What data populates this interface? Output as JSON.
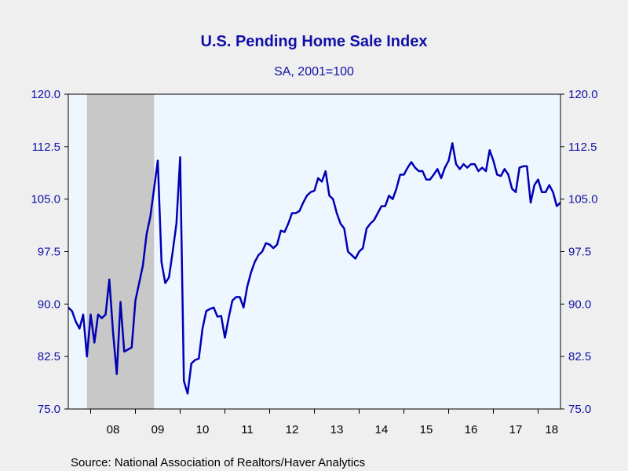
{
  "chart_data": {
    "type": "line",
    "title": "U.S. Pending Home Sale Index",
    "subtitle": "SA, 2001=100",
    "source": "Source:  National Association of Realtors/Haver Analytics",
    "ylim": [
      75.0,
      120.0
    ],
    "y_ticks": [
      "75.0",
      "82.5",
      "90.0",
      "97.5",
      "105.0",
      "112.5",
      "120.0"
    ],
    "x_ticks": [
      "08",
      "09",
      "10",
      "11",
      "12",
      "13",
      "14",
      "15",
      "16",
      "17",
      "18"
    ],
    "x_range": [
      "2007-07",
      "2018-07"
    ],
    "recession_shading": {
      "start": "2007-12",
      "end": "2009-06"
    },
    "grid": false,
    "series": [
      {
        "start": "2007-07",
        "frequency": "monthly",
        "values": [
          89.5,
          89.0,
          87.5,
          86.5,
          88.5,
          82.5,
          88.5,
          84.5,
          88.5,
          88.0,
          88.5,
          93.5,
          86.0,
          80.0,
          90.3,
          83.2,
          83.5,
          83.8,
          90.5,
          93.0,
          95.5,
          100.0,
          102.5,
          106.5,
          110.5,
          96.0,
          93.0,
          93.8,
          97.5,
          101.5,
          111.0,
          79.0,
          77.2,
          81.5,
          82.0,
          82.2,
          86.5,
          89.0,
          89.3,
          89.5,
          88.2,
          88.3,
          85.2,
          88.0,
          90.5,
          91.0,
          91.0,
          89.5,
          92.5,
          94.5,
          96.0,
          97.0,
          97.5,
          98.7,
          98.5,
          98.0,
          98.5,
          100.5,
          100.3,
          101.5,
          103.0,
          103.0,
          103.3,
          104.5,
          105.5,
          106.0,
          106.2,
          108.0,
          107.5,
          109.0,
          105.5,
          105.0,
          103.0,
          101.5,
          100.8,
          97.5,
          97.0,
          96.5,
          97.5,
          98.0,
          100.8,
          101.5,
          102.0,
          103.0,
          104.0,
          104.0,
          105.5,
          105.0,
          106.5,
          108.5,
          108.5,
          109.5,
          110.3,
          109.5,
          109.0,
          109.0,
          107.8,
          107.8,
          108.5,
          109.3,
          108.0,
          109.5,
          110.5,
          113.0,
          110.0,
          109.3,
          110.0,
          109.5,
          110.0,
          110.0,
          109.0,
          109.5,
          109.0,
          112.0,
          110.5,
          108.5,
          108.3,
          109.3,
          108.5,
          106.5,
          106.0,
          109.5,
          109.7,
          109.7,
          104.5,
          107.0,
          107.8,
          106.0,
          106.0,
          107.0,
          106.0,
          104.0,
          104.5
        ]
      }
    ]
  }
}
